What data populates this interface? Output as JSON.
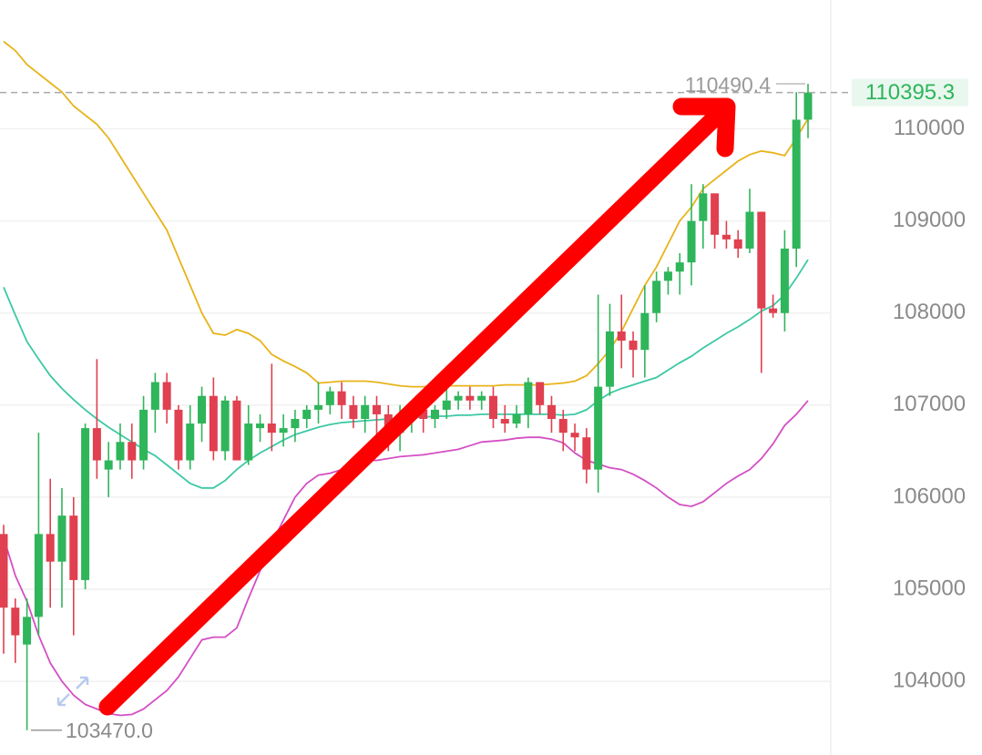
{
  "chart_data": {
    "type": "candlestick",
    "open": [
      105600,
      104800,
      104400,
      104700,
      105600,
      105300,
      105800,
      105100,
      106750,
      106300,
      106400,
      106600,
      106400,
      106950,
      107250,
      106950,
      106400,
      106800,
      107100,
      106500,
      107050,
      106400,
      106750,
      106800,
      106700,
      106750,
      106850,
      106950,
      107000,
      107150,
      107000,
      106850,
      107000,
      106900,
      106700,
      106850,
      106950,
      106850,
      106950,
      107050,
      107100,
      107050,
      107100,
      106850,
      106800,
      106900,
      107250,
      107000,
      106850,
      106700,
      106650,
      106300,
      107200,
      107800,
      107700,
      107600,
      108000,
      108350,
      108450,
      108550,
      109000,
      109300,
      108850,
      108800,
      108700,
      109100,
      108050,
      108000,
      108700,
      110100
    ],
    "high": [
      105700,
      104900,
      104900,
      106700,
      106200,
      106100,
      106000,
      106800,
      107500,
      106600,
      106800,
      106800,
      107100,
      107350,
      107350,
      107000,
      107000,
      107200,
      107300,
      107100,
      107100,
      107000,
      106900,
      107450,
      106900,
      106950,
      107000,
      107250,
      107200,
      107250,
      107100,
      107100,
      107100,
      107000,
      107000,
      107050,
      107050,
      107000,
      107200,
      107150,
      107200,
      107150,
      107200,
      107000,
      107000,
      107300,
      107250,
      107100,
      106950,
      106800,
      106750,
      108200,
      108100,
      108200,
      107800,
      108300,
      108450,
      108500,
      108650,
      109400,
      109400,
      109300,
      109000,
      108900,
      109350,
      109100,
      108200,
      108900,
      110400,
      110490.4
    ],
    "low": [
      104300,
      104200,
      103470,
      104500,
      104800,
      104800,
      104500,
      105000,
      106200,
      106000,
      106300,
      106200,
      106300,
      106700,
      106800,
      106300,
      106300,
      106600,
      106400,
      106400,
      106400,
      106350,
      106600,
      106500,
      106550,
      106600,
      106750,
      106800,
      106900,
      106850,
      106750,
      106700,
      106600,
      106500,
      106500,
      106700,
      106700,
      106750,
      106850,
      106950,
      106950,
      106950,
      106750,
      106700,
      106750,
      106750,
      106900,
      106700,
      106500,
      106500,
      106150,
      106050,
      107100,
      107400,
      107300,
      107300,
      107900,
      108200,
      108200,
      108300,
      108700,
      108700,
      108700,
      108600,
      108650,
      107350,
      107950,
      107800,
      108500,
      109900
    ],
    "close": [
      104800,
      104500,
      104700,
      105600,
      105300,
      105800,
      105100,
      106750,
      106400,
      106400,
      106600,
      106400,
      106950,
      107250,
      106950,
      106400,
      106800,
      107100,
      106500,
      107050,
      106400,
      106800,
      106800,
      106700,
      106750,
      106850,
      106950,
      107000,
      107150,
      107000,
      106850,
      107000,
      106900,
      106700,
      106850,
      106950,
      106850,
      106950,
      107050,
      107100,
      107050,
      107100,
      106850,
      106800,
      106900,
      107250,
      107000,
      106850,
      106700,
      106650,
      106300,
      107200,
      107800,
      107700,
      107600,
      108000,
      108350,
      108450,
      108550,
      109000,
      109300,
      108850,
      108800,
      108700,
      109100,
      108050,
      108000,
      108700,
      110100,
      110395.3
    ],
    "up_color": "#2fb55a",
    "down_color": "#e0404f",
    "bands": [
      {
        "color": "#e8b31a",
        "values": [
          110950,
          110850,
          110700,
          110600,
          110500,
          110400,
          110250,
          110150,
          110050,
          109900,
          109700,
          109500,
          109300,
          109100,
          108900,
          108600,
          108300,
          108000,
          107780,
          107760,
          107820,
          107780,
          107700,
          107550,
          107480,
          107420,
          107350,
          107240,
          107250,
          107260,
          107260,
          107260,
          107250,
          107230,
          107210,
          107200,
          107200,
          107210,
          107210,
          107210,
          107210,
          107210,
          107210,
          107220,
          107220,
          107220,
          107220,
          107230,
          107240,
          107260,
          107320,
          107450,
          107600,
          107800,
          108050,
          108300,
          108500,
          108750,
          109000,
          109150,
          109350,
          109450,
          109550,
          109650,
          109720,
          109760,
          109740,
          109710,
          109900,
          110110
        ]
      },
      {
        "color": "#3cc8a4",
        "values": [
          108280,
          107980,
          107690,
          107500,
          107320,
          107180,
          107060,
          106950,
          106850,
          106760,
          106680,
          106600,
          106520,
          106450,
          106350,
          106250,
          106150,
          106100,
          106100,
          106180,
          106300,
          106400,
          106480,
          106550,
          106620,
          106680,
          106720,
          106760,
          106790,
          106810,
          106820,
          106830,
          106840,
          106850,
          106860,
          106870,
          106870,
          106880,
          106880,
          106890,
          106890,
          106900,
          106900,
          106900,
          106900,
          106900,
          106900,
          106900,
          106890,
          106900,
          106950,
          107050,
          107130,
          107180,
          107220,
          107260,
          107300,
          107380,
          107460,
          107530,
          107620,
          107700,
          107780,
          107850,
          107930,
          108020,
          108080,
          108200,
          108380,
          108580
        ]
      },
      {
        "color": "#d44fc4",
        "values": [
          105560,
          105150,
          104870,
          104500,
          104200,
          104000,
          103850,
          103750,
          103700,
          103650,
          103630,
          103640,
          103700,
          103800,
          103900,
          104050,
          104250,
          104450,
          104480,
          104480,
          104580,
          104900,
          105200,
          105500,
          105750,
          106000,
          106150,
          106240,
          106260,
          106300,
          106350,
          106400,
          106400,
          106420,
          106440,
          106450,
          106460,
          106480,
          106500,
          106520,
          106560,
          106600,
          106610,
          106620,
          106640,
          106650,
          106650,
          106630,
          106590,
          106480,
          106400,
          106360,
          106320,
          106300,
          106250,
          106180,
          106100,
          106000,
          105920,
          105900,
          105950,
          106050,
          106150,
          106230,
          106300,
          106420,
          106580,
          106780,
          106900,
          107050
        ]
      }
    ],
    "ylim": [
      103200,
      111400
    ],
    "yticks": [
      104000,
      105000,
      106000,
      107000,
      108000,
      109000,
      110000
    ],
    "grid": true,
    "last_price": {
      "value": 110395.3,
      "label": "110395.3"
    },
    "high_marker": {
      "value": 110490.4,
      "label": "110490.4"
    },
    "low_marker": {
      "value": 103470,
      "label": "103470.0"
    }
  }
}
